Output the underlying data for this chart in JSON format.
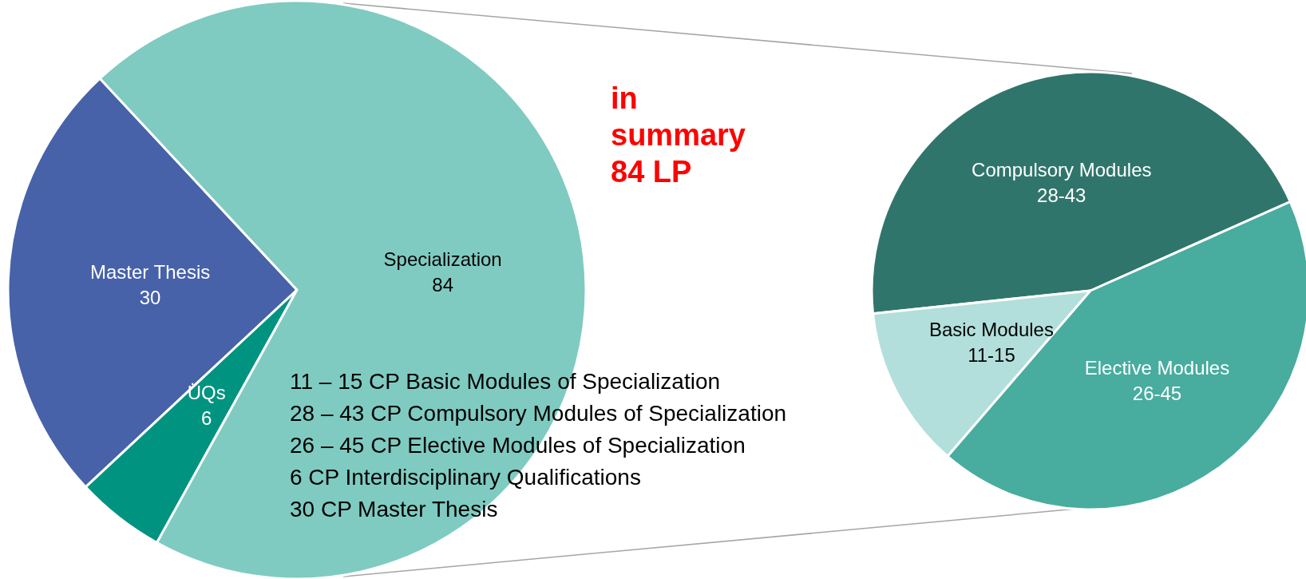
{
  "chart_data": [
    {
      "type": "pie",
      "categories": [
        "Master Thesis",
        "ÜQs",
        "Specialization"
      ],
      "values": [
        30,
        6,
        84
      ],
      "colors": [
        "#4762a9",
        "#009480",
        "#7fcbc1"
      ],
      "data_labels": true,
      "annotations": [
        "in summary 84 LP",
        "11 – 15 CP Basic Modules of Specialization",
        "28 – 43 CP Compulsory Modules of Specialization",
        "26 – 45 CP Elective Modules of Specialization",
        "6 CP Interdisciplinary Qualifications",
        "30 CP Master Thesis"
      ]
    },
    {
      "type": "pie",
      "categories": [
        "Compulsory Modules",
        "Basic Modules",
        "Elective Modules"
      ],
      "values": [
        45,
        12,
        43
      ],
      "value_labels": [
        "28-43",
        "11-15",
        "26-45"
      ],
      "colors": [
        "#30756b",
        "#b2dfdb",
        "#48ac9f"
      ]
    }
  ]
}
